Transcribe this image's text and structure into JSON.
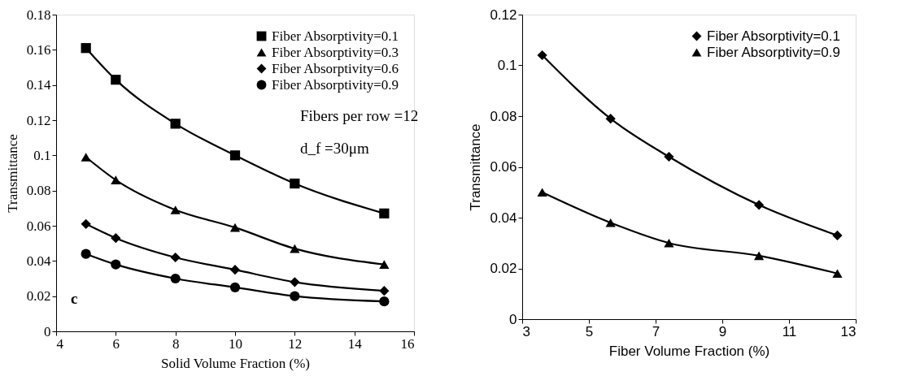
{
  "chart_data": [
    {
      "type": "line",
      "xlabel": "Solid Volume Fraction (%)",
      "ylabel": "Transmittance",
      "x": [
        5,
        6,
        8,
        10,
        12,
        15
      ],
      "xlim": [
        4,
        16
      ],
      "xticks": [
        4,
        6,
        8,
        10,
        12,
        14,
        16
      ],
      "ylim": [
        0,
        0.18
      ],
      "yticks": [
        0,
        0.02,
        0.04,
        0.06,
        0.08,
        0.1,
        0.12,
        0.14,
        0.16,
        0.18
      ],
      "grid": false,
      "legend": "top right",
      "series": [
        {
          "name": "Fiber Absorptivity=0.1",
          "color": "#000000",
          "marker": "square",
          "values": [
            0.161,
            0.143,
            0.118,
            0.1,
            0.084,
            0.067
          ]
        },
        {
          "name": "Fiber Absorptivity=0.3",
          "color": "#000000",
          "marker": "triangle",
          "values": [
            0.099,
            0.086,
            0.069,
            0.059,
            0.047,
            0.038
          ]
        },
        {
          "name": "Fiber Absorptivity=0.6",
          "color": "#000000",
          "marker": "diamond",
          "values": [
            0.061,
            0.053,
            0.042,
            0.035,
            0.028,
            0.023
          ]
        },
        {
          "name": "Fiber Absorptivity=0.9",
          "color": "#000000",
          "marker": "circle",
          "values": [
            0.044,
            0.038,
            0.03,
            0.025,
            0.02,
            0.017
          ]
        }
      ],
      "annotations": [
        "Fibers per row =12",
        "d_f =30μm",
        "c"
      ]
    },
    {
      "type": "line",
      "xlabel": "Fiber Volume Fraction (%)",
      "ylabel": "Transmittance",
      "x": [
        3.6,
        5.65,
        7.4,
        10.1,
        12.45
      ],
      "xlim": [
        3,
        13
      ],
      "xticks": [
        3,
        5,
        7,
        9,
        11,
        13
      ],
      "ylim": [
        0,
        0.12
      ],
      "yticks": [
        0,
        0.02,
        0.04,
        0.06,
        0.08,
        0.1,
        0.12
      ],
      "grid": false,
      "legend": "top right",
      "series": [
        {
          "name": "Fiber Absorptivity=0.1",
          "color": "#000000",
          "marker": "diamond",
          "values": [
            0.104,
            0.079,
            0.064,
            0.045,
            0.033
          ]
        },
        {
          "name": "Fiber Absorptivity=0.9",
          "color": "#000000",
          "marker": "triangle",
          "values": [
            0.05,
            0.038,
            0.03,
            0.025,
            0.018
          ]
        }
      ]
    }
  ]
}
